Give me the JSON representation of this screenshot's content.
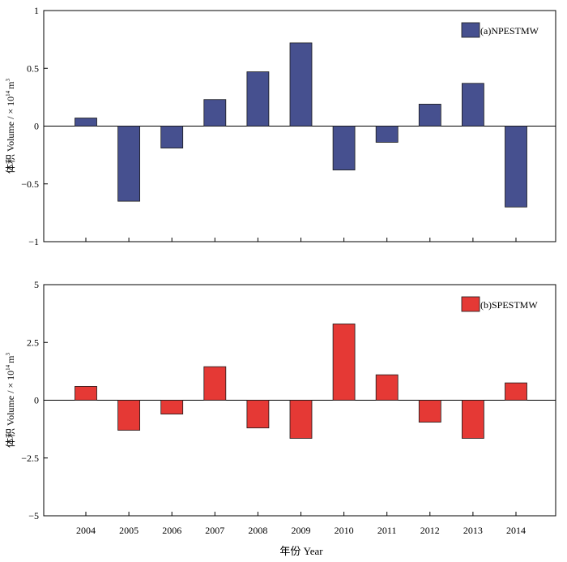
{
  "figure": {
    "xlabel": "年份 Year"
  },
  "chart_data": [
    {
      "type": "bar",
      "categories": [
        "2004",
        "2005",
        "2006",
        "2007",
        "2008",
        "2009",
        "2010",
        "2011",
        "2012",
        "2013",
        "2014"
      ],
      "series": [
        {
          "name": "(a)NPESTMW",
          "values": [
            0.07,
            -0.65,
            -0.19,
            0.23,
            0.47,
            0.72,
            -0.38,
            -0.14,
            0.19,
            0.37,
            -0.7
          ]
        }
      ],
      "ylim": [
        -1,
        1
      ],
      "yticks": [
        1,
        0.5,
        0,
        -0.5,
        -1
      ],
      "ytick_labels": [
        "1",
        "0.5",
        "0",
        "−0.5",
        "−1"
      ],
      "ylabel_main": "体积 Volume / × 10",
      "ylabel_exp": "14",
      "ylabel_unit": "m",
      "ylabel_unit_exp": "3",
      "color": "#46508f",
      "legend_position": "top-right",
      "show_x_tick_labels": false
    },
    {
      "type": "bar",
      "categories": [
        "2004",
        "2005",
        "2006",
        "2007",
        "2008",
        "2009",
        "2010",
        "2011",
        "2012",
        "2013",
        "2014"
      ],
      "series": [
        {
          "name": "(b)SPESTMW",
          "values": [
            0.6,
            -1.3,
            -0.6,
            1.45,
            -1.2,
            -1.65,
            3.3,
            1.1,
            -0.95,
            -1.65,
            0.75
          ]
        }
      ],
      "ylim": [
        -5,
        5
      ],
      "yticks": [
        5,
        2.5,
        0,
        -2.5,
        -5
      ],
      "ytick_labels": [
        "5",
        "2.5",
        "0",
        "−2.5",
        "−5"
      ],
      "ylabel_main": "体积 Volume / × 10",
      "ylabel_exp": "14",
      "ylabel_unit": "m",
      "ylabel_unit_exp": "3",
      "color": "#e53935",
      "legend_position": "top-right",
      "show_x_tick_labels": true
    }
  ]
}
